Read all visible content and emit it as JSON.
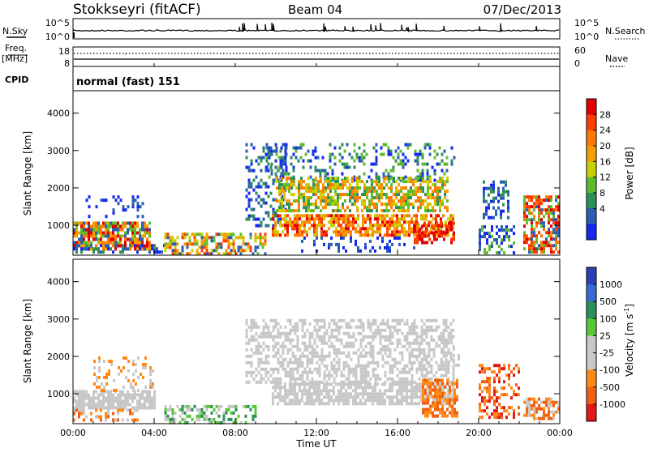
{
  "header": {
    "station": "Stokkseyri (fitACF)",
    "beam": "Beam 04",
    "date": "07/Dec/2013"
  },
  "strips": {
    "nsky_label": "N.Sky",
    "nsky_ticks": [
      "10^5",
      "10^0"
    ],
    "nsearch_label": "N.Search",
    "nsearch_ticks": [
      "10^5",
      "10^0"
    ],
    "freq_label": "Freq.",
    "freq_unit": "[MHz]",
    "freq_ticks": [
      "18",
      "8"
    ],
    "nave_label": "Nave",
    "nave_ticks": [
      "60",
      "0"
    ],
    "cpid_label": "CPID",
    "cpid_value": "normal (fast) 151"
  },
  "chart_data": [
    {
      "type": "heatmap",
      "name": "power",
      "ylabel": "Slant Range [km]",
      "yticks": [
        1000,
        2000,
        3000,
        4000
      ],
      "ylim": [
        200,
        4600
      ],
      "xlim_hours": [
        0,
        24
      ],
      "colorbar": {
        "label": "Power [dB]",
        "ticks": [
          "28",
          "24",
          "20",
          "16",
          "12",
          "8",
          "4"
        ],
        "colors": [
          "#e00000",
          "#ff3c00",
          "#ff7a00",
          "#f3a000",
          "#c8d000",
          "#5ebc2c",
          "#2f8f58",
          "#2a5fb0",
          "#1428f0"
        ]
      }
    },
    {
      "type": "heatmap",
      "name": "velocity",
      "ylabel": "Slant Range [km]",
      "yticks": [
        1000,
        2000,
        3000,
        4000
      ],
      "ylim": [
        200,
        4600
      ],
      "xlim_hours": [
        0,
        24
      ],
      "colorbar": {
        "label": "Velocity [m s^-1]",
        "ticks": [
          "1000",
          "500",
          "100",
          "25",
          "-25",
          "-100",
          "-500",
          "-1000"
        ],
        "colors": [
          "#2a3fb0",
          "#3a6ad0",
          "#2e8f58",
          "#58c838",
          "#c8c8c8",
          "#c8c8c8",
          "#ff8a1a",
          "#f06010",
          "#e01818"
        ]
      }
    }
  ],
  "xaxis": {
    "label": "Time UT",
    "ticks": [
      "00:00",
      "04:00",
      "08:00",
      "12:00",
      "16:00",
      "20:00",
      "00:00"
    ]
  }
}
